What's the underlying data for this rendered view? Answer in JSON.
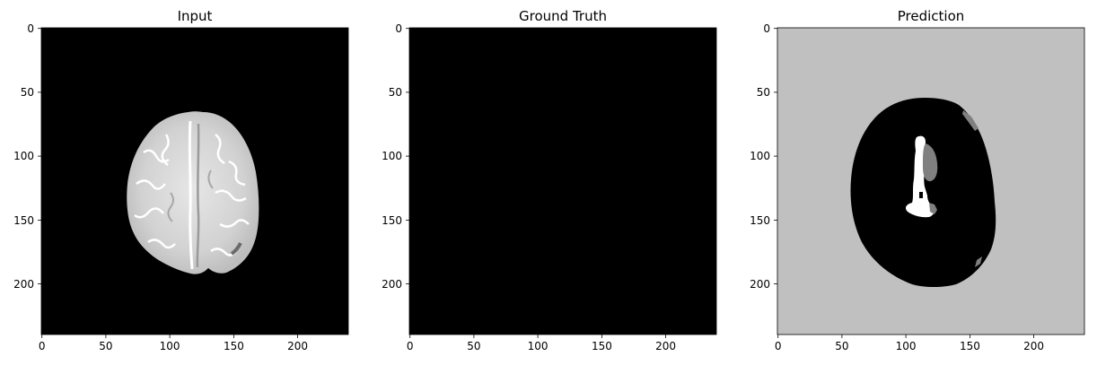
{
  "chart_data": [
    {
      "type": "heatmap",
      "title": "Input",
      "colormap": "gray",
      "xlim": [
        0,
        240
      ],
      "ylim": [
        240,
        0
      ],
      "x_ticks": [
        0,
        50,
        100,
        150,
        200
      ],
      "y_ticks": [
        0,
        50,
        100,
        150,
        200
      ],
      "background_value": "#000000",
      "content": "brain-mri-axial-slice"
    },
    {
      "type": "heatmap",
      "title": "Ground Truth",
      "colormap": "gray",
      "xlim": [
        0,
        240
      ],
      "ylim": [
        240,
        0
      ],
      "x_ticks": [
        0,
        50,
        100,
        150,
        200
      ],
      "y_ticks": [
        0,
        50,
        100,
        150,
        200
      ],
      "background_value": "#000000",
      "content": "empty"
    },
    {
      "type": "heatmap",
      "title": "Prediction",
      "colormap": "gray",
      "xlim": [
        0,
        240
      ],
      "ylim": [
        240,
        0
      ],
      "x_ticks": [
        0,
        50,
        100,
        150,
        200
      ],
      "y_ticks": [
        0,
        50,
        100,
        150,
        200
      ],
      "background_value": "#c0c0c0",
      "content": "segmentation-mask"
    }
  ]
}
